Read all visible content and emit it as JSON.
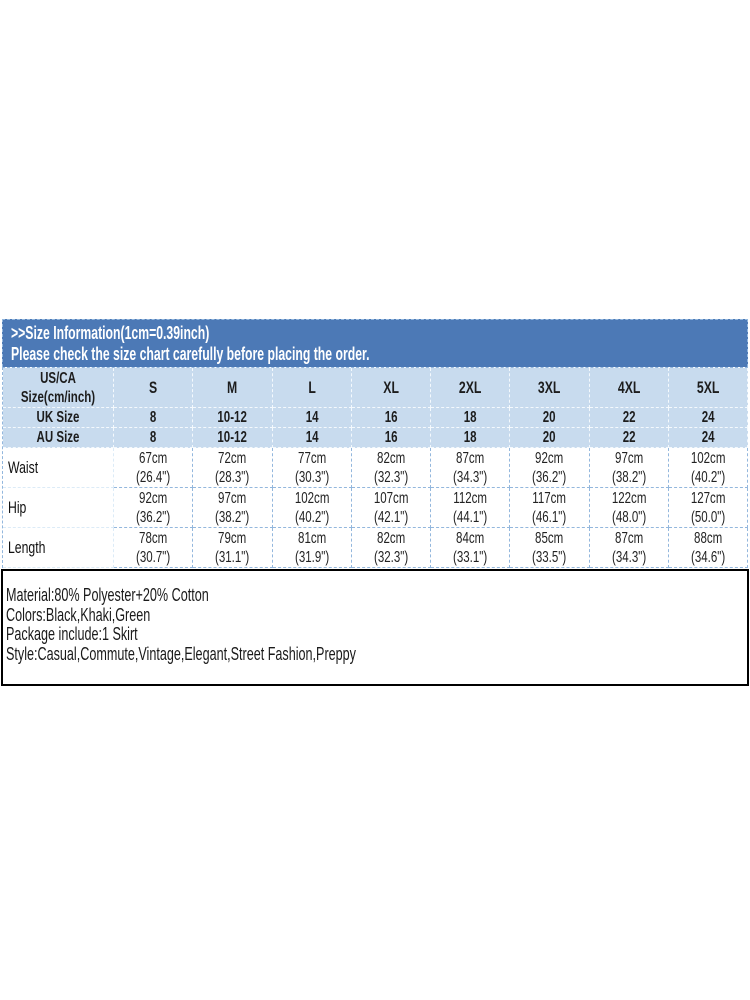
{
  "banner": {
    "line1": ">>Size Information(1cm=0.39inch)",
    "line2": "Please check the size chart carefully before placing the order."
  },
  "size_table": {
    "corner_header": "US/CA Size(cm/inch)",
    "columns": [
      "S",
      "M",
      "L",
      "XL",
      "2XL",
      "3XL",
      "4XL",
      "5XL"
    ],
    "size_rows": [
      {
        "label": "UK Size",
        "values": [
          "8",
          "10-12",
          "14",
          "16",
          "18",
          "20",
          "22",
          "24"
        ]
      },
      {
        "label": "AU Size",
        "values": [
          "8",
          "10-12",
          "14",
          "16",
          "18",
          "20",
          "22",
          "24"
        ]
      }
    ],
    "measure_rows": [
      {
        "label": "Waist",
        "cm": [
          "67cm",
          "72cm",
          "77cm",
          "82cm",
          "87cm",
          "92cm",
          "97cm",
          "102cm"
        ],
        "inch": [
          "(26.4\")",
          "(28.3\")",
          "(30.3\")",
          "(32.3\")",
          "(34.3\")",
          "(36.2\")",
          "(38.2\")",
          "(40.2\")"
        ]
      },
      {
        "label": "Hip",
        "cm": [
          "92cm",
          "97cm",
          "102cm",
          "107cm",
          "112cm",
          "117cm",
          "122cm",
          "127cm"
        ],
        "inch": [
          "(36.2\")",
          "(38.2\")",
          "(40.2\")",
          "(42.1\")",
          "(44.1\")",
          "(46.1\")",
          "(48.0\")",
          "(50.0\")"
        ]
      },
      {
        "label": "Length",
        "cm": [
          "78cm",
          "79cm",
          "81cm",
          "82cm",
          "84cm",
          "85cm",
          "87cm",
          "88cm"
        ],
        "inch": [
          "(30.7\")",
          "(31.1\")",
          "(31.9\")",
          "(32.3\")",
          "(33.1\")",
          "(33.5\")",
          "(34.3\")",
          "(34.6\")"
        ]
      }
    ]
  },
  "product_info": {
    "lines": [
      "Material:80% Polyester+20% Cotton",
      "Colors:Black,Khaki,Green",
      "Package include:1 Skirt",
      "Style:Casual,Commute,Vintage,Elegant,Street Fashion,Preppy"
    ]
  },
  "colors": {
    "banner_bg": "#4c79b6",
    "header_bg": "#c8dbee",
    "label_bg": "#5f9bd5",
    "border_dashed": "#93b7dd",
    "light_cell_border": "#f4f9fd",
    "label_cell_border": "#dcebf7",
    "info_border": "#000000"
  }
}
